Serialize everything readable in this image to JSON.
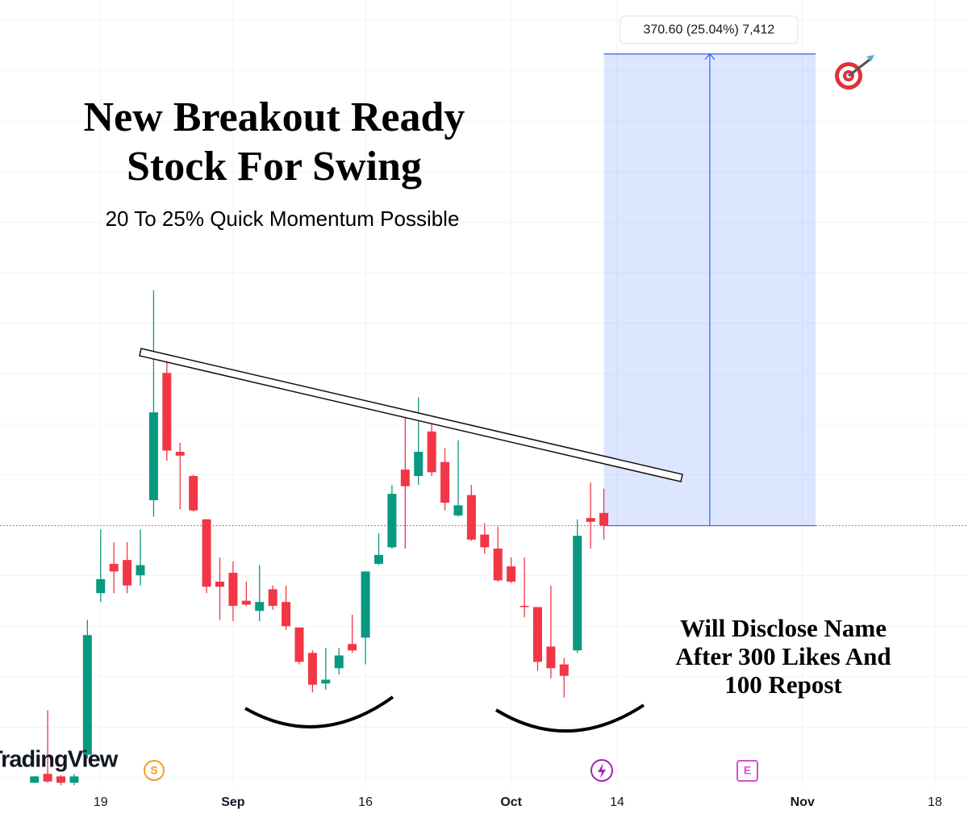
{
  "chart_data": {
    "type": "candlestick",
    "title": [
      "New Breakout Ready",
      "Stock For Swing"
    ],
    "subtitle": "20 To 25% Quick Momentum Possible",
    "annotation": [
      "Will Disclose Name",
      "After 300 Likes And",
      "100 Repost"
    ],
    "logo": "TradingView",
    "event_icons": [
      "S",
      "E"
    ],
    "measure": {
      "label": "370.60 (25.04%) 7,412",
      "change": 370.6,
      "color": "#2962ff"
    },
    "up_color": "#089981",
    "down_color": "#f23645",
    "x": [
      0,
      1,
      2,
      3,
      4,
      5,
      6,
      7,
      8,
      9,
      10,
      11,
      12,
      13,
      14,
      15,
      16,
      17,
      18,
      19,
      20,
      21,
      22,
      23,
      24,
      25,
      26,
      27,
      28,
      29,
      30,
      31,
      32,
      33,
      34,
      35,
      36,
      37,
      38,
      39,
      40,
      41,
      42,
      43
    ],
    "open": [
      1278,
      1285,
      1283,
      1278,
      1300,
      1427,
      1450,
      1453,
      1441,
      1500,
      1600,
      1538,
      1519,
      1485,
      1436,
      1443,
      1421,
      1413,
      1430,
      1420,
      1400,
      1380,
      1356,
      1368,
      1387,
      1392,
      1450,
      1463,
      1524,
      1519,
      1554,
      1530,
      1488,
      1504,
      1473,
      1462,
      1448,
      1417,
      1416,
      1385,
      1371,
      1382,
      1486,
      1490
    ],
    "high": [
      1283,
      1335,
      1284,
      1285,
      1406,
      1477,
      1467,
      1467,
      1477,
      1665,
      1615,
      1545,
      1520,
      1485,
      1455,
      1452,
      1436,
      1449,
      1433,
      1433,
      1400,
      1382,
      1384,
      1384,
      1410,
      1444,
      1474,
      1512,
      1568,
      1581,
      1560,
      1541,
      1547,
      1512,
      1482,
      1479,
      1455,
      1455,
      1416,
      1433,
      1376,
      1485,
      1514,
      1509
    ],
    "low": [
      1278,
      1278,
      1276,
      1276,
      1297,
      1420,
      1427,
      1427,
      1433,
      1487,
      1531,
      1493,
      1491,
      1427,
      1406,
      1405,
      1417,
      1405,
      1414,
      1398,
      1371,
      1349,
      1351,
      1363,
      1380,
      1371,
      1449,
      1462,
      1462,
      1512,
      1519,
      1492,
      1487,
      1468,
      1458,
      1436,
      1435,
      1408,
      1366,
      1360,
      1345,
      1380,
      1462,
      1469
    ],
    "close": [
      1283,
      1279,
      1278,
      1283,
      1394,
      1438,
      1444,
      1433,
      1449,
      1569,
      1539,
      1535,
      1492,
      1432,
      1432,
      1417,
      1418,
      1420,
      1417,
      1401,
      1373,
      1355,
      1359,
      1378,
      1382,
      1444,
      1457,
      1505,
      1511,
      1538,
      1522,
      1498,
      1496,
      1469,
      1463,
      1437,
      1436,
      1416,
      1373,
      1368,
      1362,
      1472,
      1483,
      1480
    ],
    "xlim": [
      -2.6,
      70.5
    ],
    "ylim": [
      1275,
      1893
    ],
    "xticks": [
      {
        "value": 5,
        "label": "19"
      },
      {
        "value": 15,
        "label": "Sep"
      },
      {
        "value": 25,
        "label": "16"
      },
      {
        "value": 36,
        "label": "Oct"
      },
      {
        "value": 44,
        "label": "14"
      },
      {
        "value": 58,
        "label": "Nov"
      },
      {
        "value": 68,
        "label": "18"
      }
    ],
    "grid": true
  }
}
